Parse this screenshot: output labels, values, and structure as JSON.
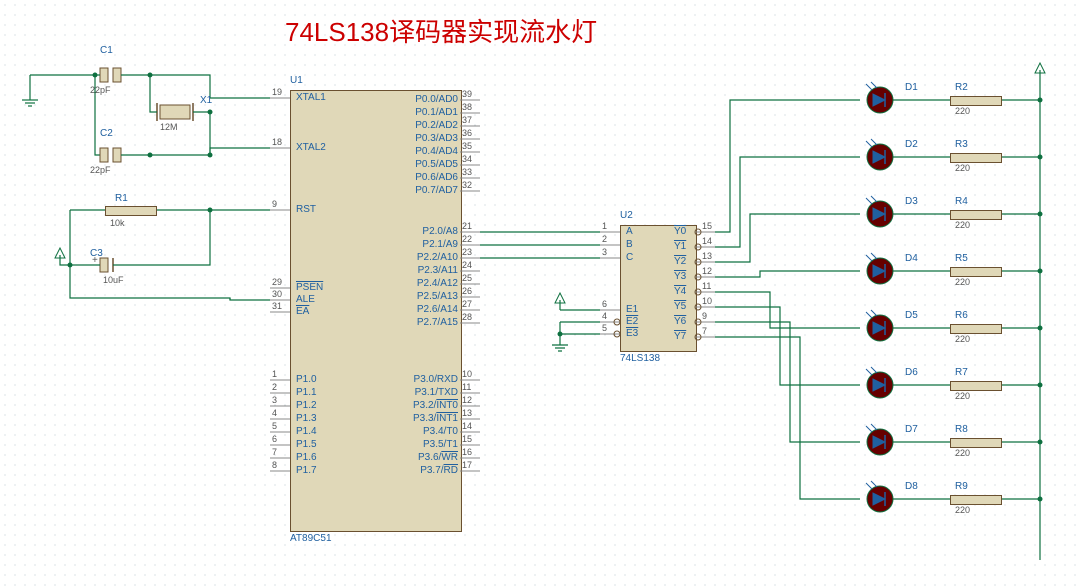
{
  "title": "74LS138译码器实现流水灯",
  "grid_color": "#b8c8d0",
  "wire_color": "#0e7040",
  "chip_fill": "#e0d8b8",
  "chip_stroke": "#6a5030",
  "text_color": "#2060a0",
  "title_color": "#cc0000",
  "components": {
    "U1": {
      "ref": "U1",
      "part": "AT89C51",
      "left_pins": [
        {
          "num": "19",
          "name": "XTAL1"
        },
        {
          "num": "18",
          "name": "XTAL2"
        },
        {
          "num": "9",
          "name": "RST"
        },
        {
          "num": "29",
          "name": "PSEN",
          "bar": true
        },
        {
          "num": "30",
          "name": "ALE"
        },
        {
          "num": "31",
          "name": "EA",
          "bar": true
        },
        {
          "num": "1",
          "name": "P1.0"
        },
        {
          "num": "2",
          "name": "P1.1"
        },
        {
          "num": "3",
          "name": "P1.2"
        },
        {
          "num": "4",
          "name": "P1.3"
        },
        {
          "num": "5",
          "name": "P1.4"
        },
        {
          "num": "6",
          "name": "P1.5"
        },
        {
          "num": "7",
          "name": "P1.6"
        },
        {
          "num": "8",
          "name": "P1.7"
        }
      ],
      "right_pins": [
        {
          "num": "39",
          "name": "P0.0/AD0"
        },
        {
          "num": "38",
          "name": "P0.1/AD1"
        },
        {
          "num": "37",
          "name": "P0.2/AD2"
        },
        {
          "num": "36",
          "name": "P0.3/AD3"
        },
        {
          "num": "35",
          "name": "P0.4/AD4"
        },
        {
          "num": "34",
          "name": "P0.5/AD5"
        },
        {
          "num": "33",
          "name": "P0.6/AD6"
        },
        {
          "num": "32",
          "name": "P0.7/AD7"
        },
        {
          "num": "21",
          "name": "P2.0/A8"
        },
        {
          "num": "22",
          "name": "P2.1/A9"
        },
        {
          "num": "23",
          "name": "P2.2/A10"
        },
        {
          "num": "24",
          "name": "P2.3/A11"
        },
        {
          "num": "25",
          "name": "P2.4/A12"
        },
        {
          "num": "26",
          "name": "P2.5/A13"
        },
        {
          "num": "27",
          "name": "P2.6/A14"
        },
        {
          "num": "28",
          "name": "P2.7/A15"
        },
        {
          "num": "10",
          "name": "P3.0/RXD"
        },
        {
          "num": "11",
          "name": "P3.1/TXD"
        },
        {
          "num": "12",
          "name": "P3.2/INT0",
          "bar": "INT0"
        },
        {
          "num": "13",
          "name": "P3.3/INT1",
          "bar": "INT1"
        },
        {
          "num": "14",
          "name": "P3.4/T0"
        },
        {
          "num": "15",
          "name": "P3.5/T1"
        },
        {
          "num": "16",
          "name": "P3.6/WR",
          "bar": "WR"
        },
        {
          "num": "17",
          "name": "P3.7/RD",
          "bar": "RD"
        }
      ]
    },
    "U2": {
      "ref": "U2",
      "part": "74LS138",
      "left_pins": [
        {
          "num": "1",
          "name": "A"
        },
        {
          "num": "2",
          "name": "B"
        },
        {
          "num": "3",
          "name": "C"
        },
        {
          "num": "6",
          "name": "E1"
        },
        {
          "num": "4",
          "name": "E2",
          "bar": true
        },
        {
          "num": "5",
          "name": "E3",
          "bar": true
        }
      ],
      "right_pins": [
        {
          "num": "15",
          "name": "Y0",
          "bar": true
        },
        {
          "num": "14",
          "name": "Y1",
          "bar": true
        },
        {
          "num": "13",
          "name": "Y2",
          "bar": true
        },
        {
          "num": "12",
          "name": "Y3",
          "bar": true
        },
        {
          "num": "11",
          "name": "Y4",
          "bar": true
        },
        {
          "num": "10",
          "name": "Y5",
          "bar": true
        },
        {
          "num": "9",
          "name": "Y6",
          "bar": true
        },
        {
          "num": "7",
          "name": "Y7",
          "bar": true
        }
      ]
    },
    "C1": {
      "ref": "C1",
      "val": "22pF"
    },
    "C2": {
      "ref": "C2",
      "val": "22pF"
    },
    "C3": {
      "ref": "C3",
      "val": "10uF"
    },
    "X1": {
      "ref": "X1",
      "val": "12M"
    },
    "R1": {
      "ref": "R1",
      "val": "10k"
    },
    "LEDs": [
      {
        "d": "D1",
        "r": "R2",
        "val": "220"
      },
      {
        "d": "D2",
        "r": "R3",
        "val": "220"
      },
      {
        "d": "D3",
        "r": "R4",
        "val": "220"
      },
      {
        "d": "D4",
        "r": "R5",
        "val": "220"
      },
      {
        "d": "D5",
        "r": "R6",
        "val": "220"
      },
      {
        "d": "D6",
        "r": "R7",
        "val": "220"
      },
      {
        "d": "D7",
        "r": "R8",
        "val": "220"
      },
      {
        "d": "D8",
        "r": "R9",
        "val": "220"
      }
    ]
  }
}
